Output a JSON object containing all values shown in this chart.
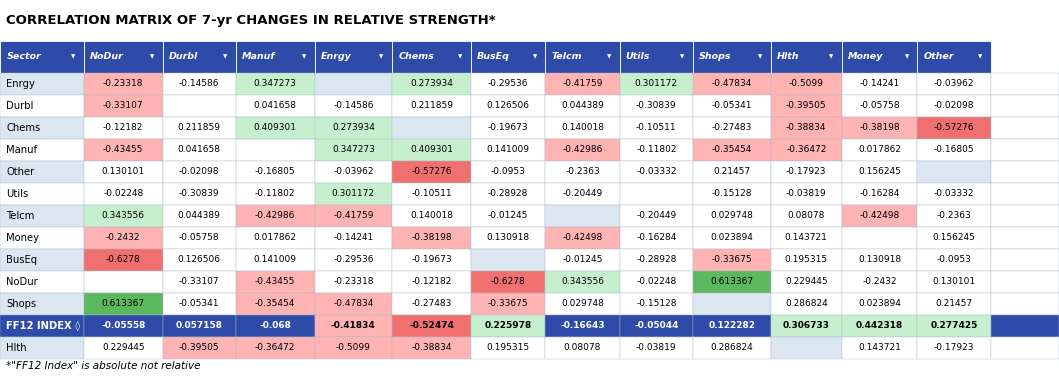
{
  "title": "CORRELATION MATRIX OF 7-yr CHANGES IN RELATIVE STRENGTH*",
  "footnote": "*\"FF12 Index\" is absolute not relative",
  "header_bg": "#2E4BAA",
  "header_text_color": "#ffffff",
  "col_headers": [
    "Sector",
    "NoDur",
    "Durbl",
    "Manuf",
    "Enrgy",
    "Chems",
    "BusEq",
    "Telcm",
    "Utils",
    "Shops",
    "Hlth",
    "Money",
    "Other"
  ],
  "row_bg_even": "#dce6f1",
  "row_bg_odd": "#ffffff",
  "ff12_bg": "#1F3A8A",
  "color_map": {
    "white": "#ffffff",
    "lgreen": "#c6efce",
    "lpink": "#ffb3b3",
    "red": "#f07070",
    "green": "#5cb85c",
    "blue_even": "#dce6f1",
    "blue_odd": "#ffffff",
    "empty": "#e8ecf5"
  },
  "rows": [
    {
      "label": "Enrgy",
      "vals": [
        "",
        "-0.23318",
        "-0.14586",
        "0.347273",
        "",
        "0.273934",
        "-0.29536",
        "-0.41759",
        "0.301172",
        "-0.47834",
        "-0.5099",
        "-0.14241",
        "-0.03962"
      ],
      "bg": [
        "",
        "lpink",
        "white",
        "lgreen",
        "empty",
        "lgreen",
        "white",
        "lpink",
        "lgreen",
        "lpink",
        "lpink",
        "white",
        "white"
      ]
    },
    {
      "label": "Durbl",
      "vals": [
        "",
        "-0.33107",
        "",
        "0.041658",
        "-0.14586",
        "0.211859",
        "0.126506",
        "0.044389",
        "-0.30839",
        "-0.05341",
        "-0.39505",
        "-0.05758",
        "-0.02098"
      ],
      "bg": [
        "",
        "lpink",
        "empty",
        "white",
        "white",
        "white",
        "white",
        "white",
        "white",
        "white",
        "lpink",
        "white",
        "white"
      ]
    },
    {
      "label": "Chems",
      "vals": [
        "",
        "-0.12182",
        "0.211859",
        "0.409301",
        "0.273934",
        "",
        "-0.19673",
        "0.140018",
        "-0.10511",
        "-0.27483",
        "-0.38834",
        "-0.38198",
        "-0.57276"
      ],
      "bg": [
        "",
        "white",
        "white",
        "lgreen",
        "lgreen",
        "empty",
        "white",
        "white",
        "white",
        "white",
        "lpink",
        "lpink",
        "red"
      ]
    },
    {
      "label": "Manuf",
      "vals": [
        "",
        "-0.43455",
        "0.041658",
        "",
        "0.347273",
        "0.409301",
        "0.141009",
        "-0.42986",
        "-0.11802",
        "-0.35454",
        "-0.36472",
        "0.017862",
        "-0.16805"
      ],
      "bg": [
        "",
        "lpink",
        "white",
        "empty",
        "lgreen",
        "lgreen",
        "white",
        "lpink",
        "white",
        "lpink",
        "lpink",
        "white",
        "white"
      ]
    },
    {
      "label": "Other",
      "vals": [
        "",
        "0.130101",
        "-0.02098",
        "-0.16805",
        "-0.03962",
        "-0.57276",
        "-0.0953",
        "-0.2363",
        "-0.03332",
        "0.21457",
        "-0.17923",
        "0.156245",
        ""
      ],
      "bg": [
        "",
        "white",
        "white",
        "white",
        "white",
        "red",
        "white",
        "white",
        "white",
        "white",
        "white",
        "white",
        "empty"
      ]
    },
    {
      "label": "Utils",
      "vals": [
        "",
        "-0.02248",
        "-0.30839",
        "-0.11802",
        "0.301172",
        "-0.10511",
        "-0.28928",
        "-0.20449",
        "",
        "-0.15128",
        "-0.03819",
        "-0.16284",
        "-0.03332"
      ],
      "bg": [
        "",
        "white",
        "white",
        "white",
        "lgreen",
        "white",
        "white",
        "white",
        "empty",
        "white",
        "white",
        "white",
        "white"
      ]
    },
    {
      "label": "Telcm",
      "vals": [
        "",
        "0.343556",
        "0.044389",
        "-0.42986",
        "-0.41759",
        "0.140018",
        "-0.01245",
        "",
        "-0.20449",
        "0.029748",
        "0.08078",
        "-0.42498",
        "-0.2363"
      ],
      "bg": [
        "",
        "lgreen",
        "white",
        "lpink",
        "lpink",
        "white",
        "white",
        "empty",
        "white",
        "white",
        "white",
        "lpink",
        "white"
      ]
    },
    {
      "label": "Money",
      "vals": [
        "",
        "-0.2432",
        "-0.05758",
        "0.017862",
        "-0.14241",
        "-0.38198",
        "0.130918",
        "-0.42498",
        "-0.16284",
        "0.023894",
        "0.143721",
        "",
        "0.156245"
      ],
      "bg": [
        "",
        "lpink",
        "white",
        "white",
        "white",
        "lpink",
        "white",
        "lpink",
        "white",
        "white",
        "white",
        "empty",
        "white"
      ]
    },
    {
      "label": "BusEq",
      "vals": [
        "",
        "-0.6278",
        "0.126506",
        "0.141009",
        "-0.29536",
        "-0.19673",
        "",
        "-0.01245",
        "-0.28928",
        "-0.33675",
        "0.195315",
        "0.130918",
        "-0.0953"
      ],
      "bg": [
        "",
        "red",
        "white",
        "white",
        "white",
        "white",
        "empty",
        "white",
        "white",
        "lpink",
        "white",
        "white",
        "white"
      ]
    },
    {
      "label": "NoDur",
      "vals": [
        "",
        "",
        "-0.33107",
        "-0.43455",
        "-0.23318",
        "-0.12182",
        "-0.6278",
        "0.343556",
        "-0.02248",
        "0.613367",
        "0.229445",
        "-0.2432",
        "0.130101"
      ],
      "bg": [
        "",
        "empty",
        "white",
        "lpink",
        "white",
        "white",
        "red",
        "lgreen",
        "white",
        "green",
        "white",
        "white",
        "white"
      ]
    },
    {
      "label": "Shops",
      "vals": [
        "",
        "0.613367",
        "-0.05341",
        "-0.35454",
        "-0.47834",
        "-0.27483",
        "-0.33675",
        "0.029748",
        "-0.15128",
        "",
        "0.286824",
        "0.023894",
        "0.21457"
      ],
      "bg": [
        "",
        "green",
        "white",
        "lpink",
        "lpink",
        "white",
        "lpink",
        "white",
        "white",
        "empty",
        "white",
        "white",
        "white"
      ]
    },
    {
      "label": "FF12 INDEX ◊",
      "vals": [
        "",
        "-0.05558",
        "0.057158",
        "-0.068",
        "-0.41834",
        "-0.52474",
        "0.225978",
        "-0.16643",
        "-0.05044",
        "0.122282",
        "0.306733",
        "0.442318",
        "0.277425"
      ],
      "bg": [
        "",
        "ff12",
        "ff12",
        "ff12",
        "lpink",
        "red",
        "lgreen",
        "ff12",
        "ff12",
        "ff12",
        "lgreen",
        "lgreen",
        "lgreen"
      ],
      "bold": true
    },
    {
      "label": "Hlth",
      "vals": [
        "",
        "0.229445",
        "-0.39505",
        "-0.36472",
        "-0.5099",
        "-0.38834",
        "0.195315",
        "0.08078",
        "-0.03819",
        "0.286824",
        "",
        "0.143721",
        "-0.17923"
      ],
      "bg": [
        "",
        "white",
        "lpink",
        "lpink",
        "lpink",
        "lpink",
        "white",
        "white",
        "white",
        "white",
        "empty",
        "white",
        "white"
      ]
    }
  ]
}
